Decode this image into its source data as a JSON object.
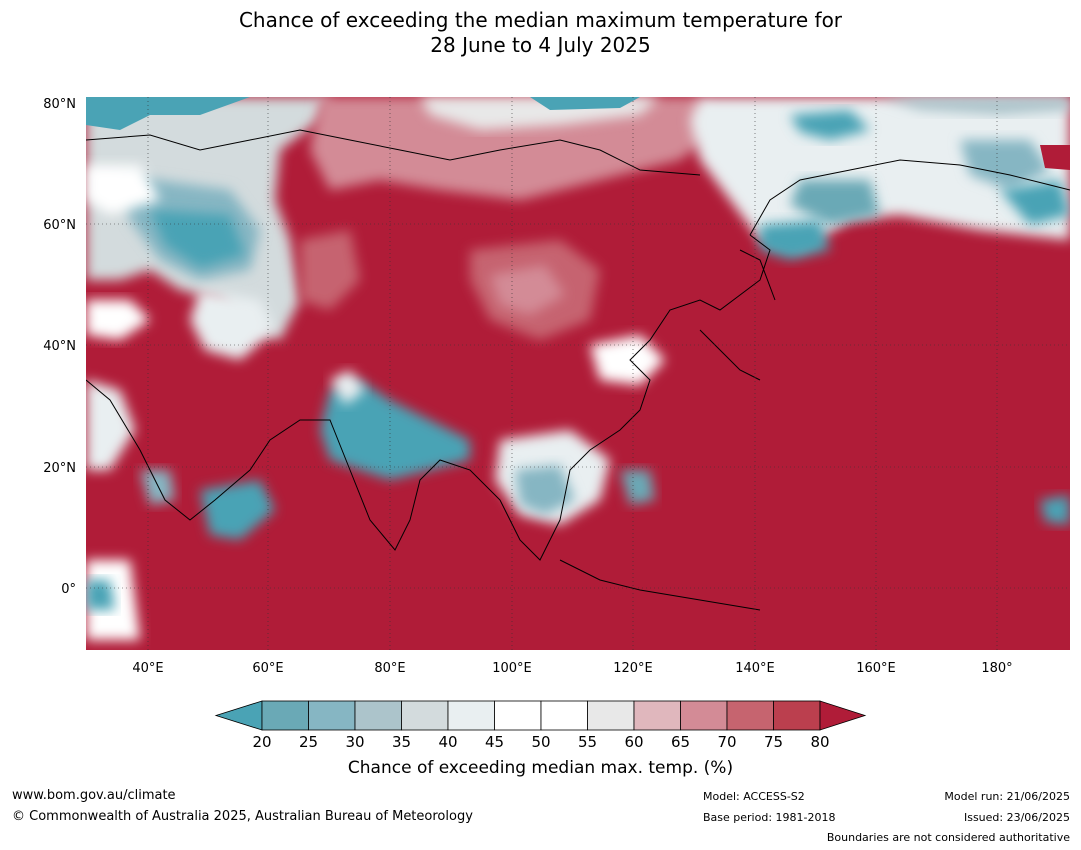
{
  "title": {
    "line1": "Chance of exceeding the median maximum temperature for",
    "line2": "28 June to 4 July 2025"
  },
  "map": {
    "lat_labels": [
      "80°N",
      "60°N",
      "40°N",
      "20°N",
      "0°"
    ],
    "lon_labels": [
      "40°E",
      "60°E",
      "80°E",
      "100°E",
      "120°E",
      "140°E",
      "160°E",
      "180°"
    ],
    "lat_range": [
      -10,
      80
    ],
    "lon_range": [
      30,
      192
    ],
    "dominant_color": "#b01c38"
  },
  "colorbar": {
    "ticks": [
      "20",
      "25",
      "30",
      "35",
      "40",
      "45",
      "50",
      "55",
      "60",
      "65",
      "70",
      "75",
      "80"
    ],
    "colors": [
      "#4aa3b5",
      "#6aa9b6",
      "#86b6c3",
      "#acc4cb",
      "#d3dbdd",
      "#e9eff1",
      "#ffffff",
      "#ffffff",
      "#e8e8e8",
      "#e0b7bd",
      "#d38b96",
      "#c6646f",
      "#bb3f4e",
      "#b01c38"
    ],
    "label": "Chance of exceeding median max. temp. (%)"
  },
  "footer": {
    "url": "www.bom.gov.au/climate",
    "copyright": "© Commonwealth of Australia 2025, Australian Bureau of Meteorology",
    "model": "Model: ACCESS-S2",
    "base_period": "Base period: 1981-2018",
    "model_run": "Model run: 21/06/2025",
    "issued": "Issued: 23/06/2025",
    "disclaimer": "Boundaries are not considered authoritative"
  }
}
